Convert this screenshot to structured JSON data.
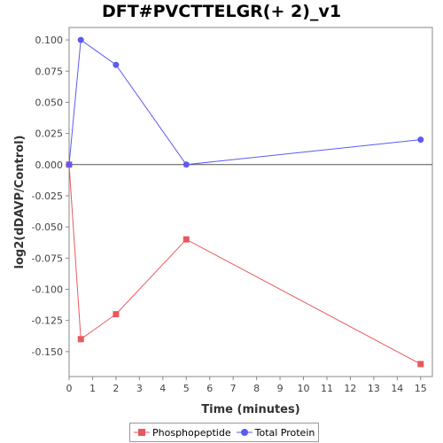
{
  "chart_data": {
    "type": "line",
    "title": "DFT#PVCTTELGR(+ 2)_v1",
    "xlabel": "Time (minutes)",
    "ylabel": "log2(dDAVP/Control)",
    "xlim": [
      0,
      15.5
    ],
    "ylim": [
      -0.17,
      0.11
    ],
    "x_ticks": [
      0,
      1,
      2,
      3,
      4,
      5,
      6,
      7,
      8,
      9,
      10,
      11,
      12,
      13,
      14,
      15
    ],
    "x_tick_labels": [
      "0",
      "1",
      "2",
      "3",
      "4",
      "5",
      "6",
      "7",
      "8",
      "9",
      "10",
      "11",
      "12",
      "13",
      "14",
      "15"
    ],
    "y_ticks": [
      0.1,
      0.075,
      0.05,
      0.025,
      0.0,
      -0.025,
      -0.05,
      -0.075,
      -0.1,
      -0.125,
      -0.15
    ],
    "y_tick_labels": [
      "0.100",
      "0.075",
      "0.050",
      "0.025",
      "0.000",
      "-0.025",
      "-0.050",
      "-0.075",
      "-0.100",
      "-0.125",
      "-0.150"
    ],
    "zero_line": true,
    "grid": false,
    "legend_position": "bottom",
    "series": [
      {
        "name": "Phosphopeptide",
        "color": "#e8595c",
        "marker": "square",
        "x": [
          0,
          0.5,
          2,
          5,
          15
        ],
        "y": [
          0.0,
          -0.14,
          -0.12,
          -0.06,
          -0.16
        ]
      },
      {
        "name": "Total Protein",
        "color": "#5b5bef",
        "marker": "circle",
        "x": [
          0,
          0.5,
          2,
          5,
          15
        ],
        "y": [
          0.0,
          0.1,
          0.08,
          0.0,
          0.02
        ]
      }
    ]
  }
}
